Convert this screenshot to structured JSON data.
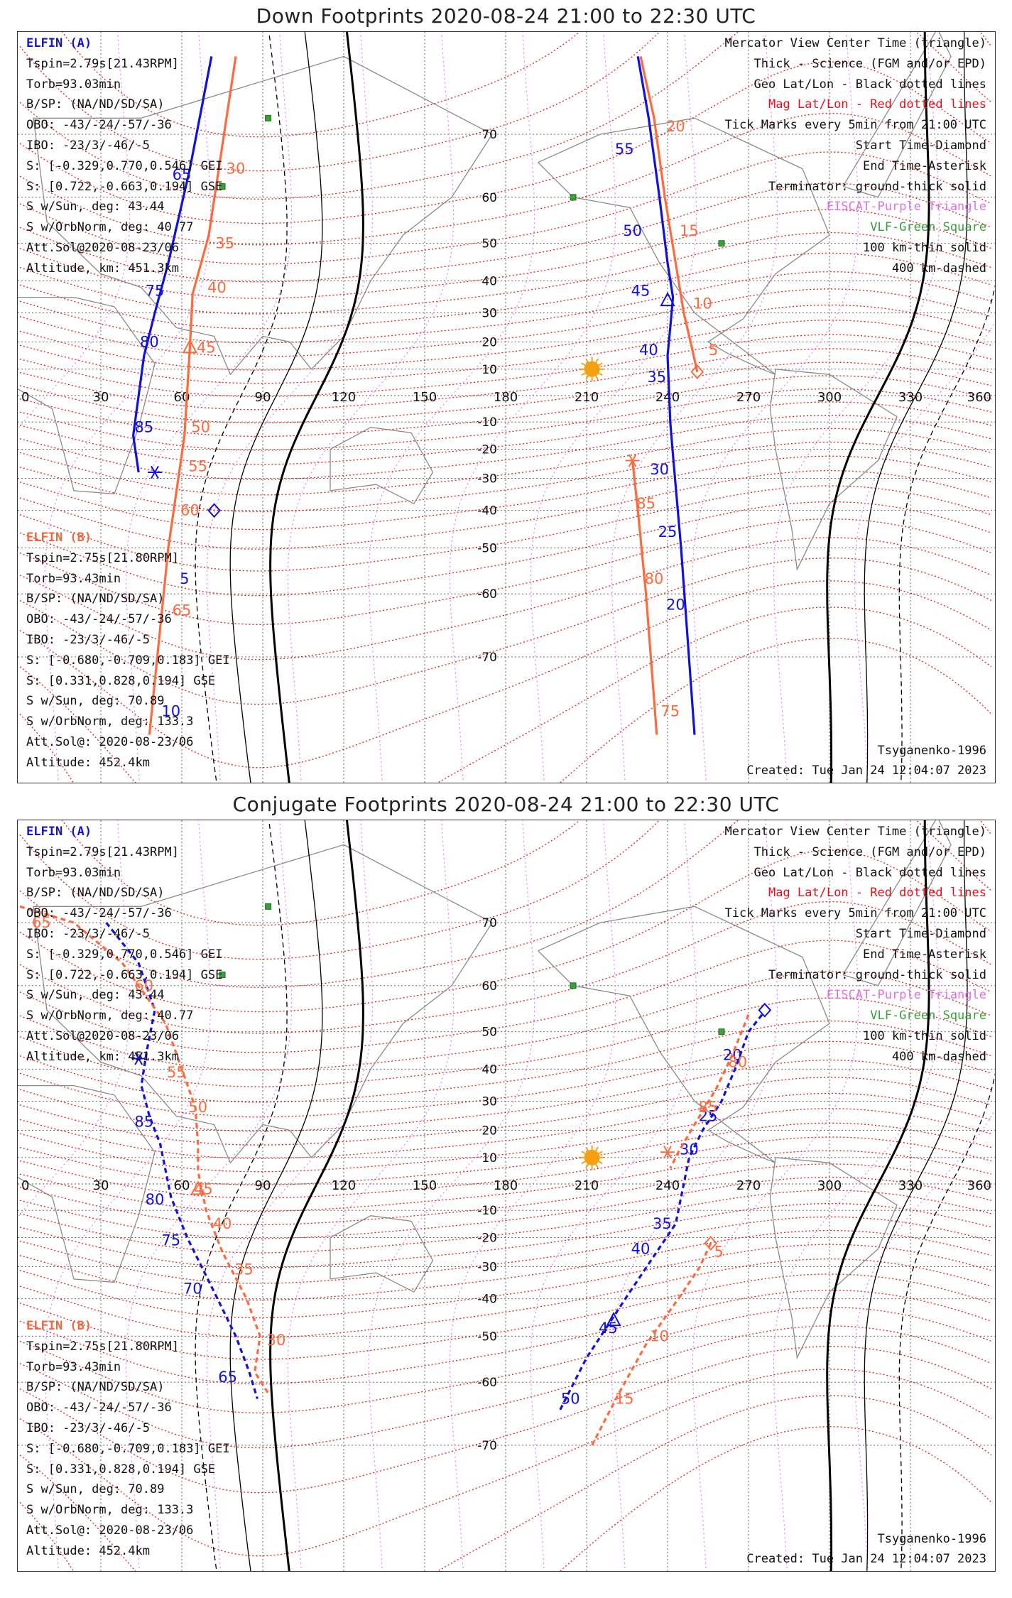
{
  "colors": {
    "elfin_a": "#1010e0",
    "elfin_b": "#ff6a3d",
    "mag_grid": "#e81a1a",
    "geo_grid": "#555555",
    "eiscat": "#e080ee",
    "vlf": "#3aa03a",
    "terminator": "#000000",
    "sun": "#f4a010"
  },
  "panels": [
    {
      "title": "Down Footprints 2020-08-24 21:00 to 22:30 UTC",
      "left_info_a": [
        "ELFIN (A)",
        "Tspin=2.79s[21.43RPM]",
        "Torb=93.03min",
        "B/SP: (NA/ND/SD/SA)",
        "OBO: -43/-24/-57/-36",
        "IBO: -23/3/-46/-5",
        "S: [-0.329,0.770,0.546] GEI",
        "S: [0.722,-0.663,0.194] GSE",
        "S w/Sun, deg: 43.44",
        "S w/OrbNorm, deg: 40.77",
        "Att.Sol@2020-08-23/06",
        "Altitude, km: 451.3km"
      ],
      "left_info_b": [
        "ELFIN (B)",
        "Tspin=2.75s[21.80RPM]",
        "Torb=93.43min",
        "B/SP: (NA/ND/SD/SA)",
        "OBO: -43/-24/-57/-36",
        "IBO: -23/3/-46/-5",
        "S: [-0.680,-0.709,0.183] GEI",
        "S: [0.331,0.828,0.194] GSE",
        "S w/Sun, deg: 70.89",
        "S w/OrbNorm, deg: 133.3",
        "Att.Sol@: 2020-08-23/06",
        "Altitude: 452.4km"
      ],
      "right_legend": [
        "Mercator View Center Time (triangle)",
        "Thick - Science (FGM and/or EPD)",
        "Geo Lat/Lon - Black dotted lines",
        "Mag Lat/Lon - Red dotted lines",
        "Tick Marks every 5min from 21:00 UTC",
        "Start Time-Diamond",
        "End Time-Asterisk",
        "Terminator: ground-thick solid",
        "EISCAT-Purple Triangle",
        "VLF-Green Square",
        "100 km-thin solid",
        "400 km-dashed"
      ],
      "model": "Tsyganenko-1996",
      "created": "Created: Tue Jan 24 12:04:07 2023"
    },
    {
      "title": "Conjugate Footprints 2020-08-24 21:00 to 22:30 UTC",
      "left_info_a": [
        "ELFIN (A)",
        "Tspin=2.79s[21.43RPM]",
        "Torb=93.03min",
        "B/SP: (NA/ND/SD/SA)",
        "OBO: -43/-24/-57/-36",
        "IBO: -23/3/-46/-5",
        "S: [-0.329,0.770,0.546] GEI",
        "S: [0.722,-0.663,0.194] GSE",
        "S w/Sun, deg: 43.44",
        "S w/OrbNorm, deg: 40.77",
        "Att.Sol@2020-08-23/06",
        "Altitude, km: 451.3km"
      ],
      "left_info_b": [
        "ELFIN (B)",
        "Tspin=2.75s[21.80RPM]",
        "Torb=93.43min",
        "B/SP: (NA/ND/SD/SA)",
        "OBO: -43/-24/-57/-36",
        "IBO: -23/3/-46/-5",
        "S: [-0.680,-0.709,0.183] GEI",
        "S: [0.331,0.828,0.194] GSE",
        "S w/Sun, deg: 70.89",
        "S w/OrbNorm, deg: 133.3",
        "Att.Sol@: 2020-08-23/06",
        "Altitude: 452.4km"
      ],
      "right_legend": [
        "Mercator View Center Time (triangle)",
        "Thick - Science (FGM and/or EPD)",
        "Geo Lat/Lon - Black dotted lines",
        "Mag Lat/Lon - Red dotted lines",
        "Tick Marks every 5min from 21:00 UTC",
        "Start Time-Diamond",
        "End Time-Asterisk",
        "Terminator: ground-thick solid",
        "EISCAT-Purple Triangle",
        "VLF-Green Square",
        "100 km-thin solid",
        "400 km-dashed"
      ],
      "model": "Tsyganenko-1996",
      "created": "Created: Tue Jan 24 12:04:07 2023"
    }
  ],
  "chart_data": [
    {
      "type": "scatter",
      "title": "Down Footprints 2020-08-24 21:00 to 22:30 UTC",
      "projection": "mercator",
      "xlim": [
        0,
        360
      ],
      "lon_ticks": [
        0,
        30,
        60,
        90,
        120,
        150,
        180,
        210,
        240,
        270,
        300,
        330,
        360
      ],
      "lat_ticks": [
        70,
        60,
        50,
        40,
        30,
        20,
        10,
        -10,
        -20,
        -30,
        -40,
        -50,
        -60,
        -70
      ],
      "sun": {
        "lon": 212,
        "lat": 10
      },
      "series": [
        {
          "name": "ELFIN (A)",
          "linestyle": "solid",
          "segments": [
            [
              [
                71,
                78
              ],
              [
                63,
                65
              ],
              [
                55,
                45
              ],
              [
                50,
                30
              ],
              [
                46,
                15
              ],
              [
                42,
                -15
              ],
              [
                44,
                -28
              ]
            ],
            [
              [
                229,
                78
              ],
              [
                233,
                72
              ],
              [
                237,
                60
              ],
              [
                240,
                45
              ],
              [
                242,
                35
              ],
              [
                241,
                25
              ],
              [
                240,
                15
              ],
              [
                241,
                -10
              ],
              [
                242,
                -22
              ],
              [
                245,
                -50
              ],
              [
                250,
                -78
              ]
            ]
          ],
          "ticks": [
            {
              "label": "65",
              "lon": 60,
              "lat": 64
            },
            {
              "label": "75",
              "lon": 50,
              "lat": 37
            },
            {
              "label": "80",
              "lon": 48,
              "lat": 20
            },
            {
              "label": "85",
              "lon": 46,
              "lat": -12
            },
            {
              "label": "5",
              "lon": 61,
              "lat": -57
            },
            {
              "label": "10",
              "lon": 56,
              "lat": -76
            },
            {
              "label": "55",
              "lon": 224,
              "lat": 68
            },
            {
              "label": "50",
              "lon": 227,
              "lat": 53
            },
            {
              "label": "45",
              "lon": 230,
              "lat": 37
            },
            {
              "label": "40",
              "lon": 233,
              "lat": 17
            },
            {
              "label": "35",
              "lon": 236,
              "lat": 7
            },
            {
              "label": "30",
              "lon": 237,
              "lat": -27
            },
            {
              "label": "25",
              "lon": 240,
              "lat": -46
            },
            {
              "label": "20",
              "lon": 243,
              "lat": -62
            }
          ],
          "view_center": {
            "lon": 240,
            "lat": 34
          },
          "start": {
            "lon": 72,
            "lat": -40
          },
          "end": {
            "lon": 50,
            "lat": -28
          }
        },
        {
          "name": "ELFIN (B)",
          "linestyle": "solid",
          "segments": [
            [
              [
                80,
                78
              ],
              [
                70,
                52
              ],
              [
                64,
                36
              ],
              [
                63,
                18
              ],
              [
                61,
                -15
              ],
              [
                55,
                -50
              ],
              [
                48,
                -78
              ]
            ],
            [
              [
                230,
                78
              ],
              [
                235,
                72
              ],
              [
                239,
                60
              ],
              [
                243,
                45
              ],
              [
                246,
                30
              ],
              [
                249,
                18
              ],
              [
                251,
                9
              ]
            ],
            [
              [
                227,
                -24
              ],
              [
                229,
                -40
              ],
              [
                232,
                -60
              ],
              [
                236,
                -78
              ]
            ]
          ],
          "ticks": [
            {
              "label": "30",
              "lon": 80,
              "lat": 65
            },
            {
              "label": "35",
              "lon": 76,
              "lat": 50
            },
            {
              "label": "40",
              "lon": 73,
              "lat": 38
            },
            {
              "label": "45",
              "lon": 69,
              "lat": 18
            },
            {
              "label": "50",
              "lon": 67,
              "lat": -12
            },
            {
              "label": "55",
              "lon": 66,
              "lat": -26
            },
            {
              "label": "60",
              "lon": 63,
              "lat": -40
            },
            {
              "label": "65",
              "lon": 60,
              "lat": -63
            },
            {
              "label": "20",
              "lon": 243,
              "lat": 71
            },
            {
              "label": "15",
              "lon": 248,
              "lat": 53
            },
            {
              "label": "10",
              "lon": 253,
              "lat": 33
            },
            {
              "label": "5",
              "lon": 257,
              "lat": 17
            },
            {
              "label": "85",
              "lon": 232,
              "lat": -38
            },
            {
              "label": "80",
              "lon": 235,
              "lat": -57
            },
            {
              "label": "75",
              "lon": 241,
              "lat": -76
            }
          ],
          "view_center": {
            "lon": 63,
            "lat": 18
          },
          "start": {
            "lon": 251,
            "lat": 9
          },
          "end": {
            "lon": 227,
            "lat": -24
          }
        }
      ]
    },
    {
      "type": "scatter",
      "title": "Conjugate Footprints 2020-08-24 21:00 to 22:30 UTC",
      "projection": "mercator",
      "xlim": [
        0,
        360
      ],
      "lon_ticks": [
        0,
        30,
        60,
        90,
        120,
        150,
        180,
        210,
        240,
        270,
        300,
        330,
        360
      ],
      "lat_ticks": [
        70,
        60,
        50,
        40,
        30,
        20,
        10,
        -10,
        -20,
        -30,
        -40,
        -50,
        -60,
        -70
      ],
      "sun": {
        "lon": 212,
        "lat": 10
      },
      "series": [
        {
          "name": "ELFIN (A)",
          "linestyle": "dashed",
          "segments": [
            [
              [
                32,
                70
              ],
              [
                44,
                64
              ],
              [
                50,
                55
              ],
              [
                47,
                45
              ],
              [
                45,
                35
              ],
              [
                48,
                25
              ],
              [
                52,
                15
              ],
              [
                56,
                -5
              ],
              [
                62,
                -20
              ],
              [
                72,
                -38
              ],
              [
                80,
                -50
              ],
              [
                85,
                -58
              ],
              [
                88,
                -63
              ]
            ],
            [
              [
                275,
                54
              ],
              [
                270,
                50
              ],
              [
                265,
                40
              ],
              [
                260,
                30
              ],
              [
                253,
                20
              ],
              [
                248,
                10
              ],
              [
                243,
                -15
              ],
              [
                236,
                -25
              ],
              [
                226,
                -38
              ],
              [
                220,
                -45
              ],
              [
                210,
                -55
              ],
              [
                200,
                -65
              ]
            ]
          ],
          "ticks": [
            {
              "label": "85",
              "lon": 46,
              "lat": 23
            },
            {
              "label": "80",
              "lon": 50,
              "lat": -6
            },
            {
              "label": "75",
              "lon": 56,
              "lat": -21
            },
            {
              "label": "70",
              "lon": 64,
              "lat": -37
            },
            {
              "label": "65",
              "lon": 77,
              "lat": -59
            },
            {
              "label": "20",
              "lon": 264,
              "lat": 44
            },
            {
              "label": "25",
              "lon": 255,
              "lat": 25
            },
            {
              "label": "30",
              "lon": 248,
              "lat": 13
            },
            {
              "label": "35",
              "lon": 238,
              "lat": -15
            },
            {
              "label": "40",
              "lon": 230,
              "lat": -24
            },
            {
              "label": "45",
              "lon": 218,
              "lat": -48
            },
            {
              "label": "50",
              "lon": 204,
              "lat": -63
            }
          ],
          "view_center": {
            "lon": 220,
            "lat": -46
          },
          "start": {
            "lon": 276,
            "lat": 55
          },
          "end": {
            "lon": 44,
            "lat": 43
          }
        },
        {
          "name": "ELFIN (B)",
          "linestyle": "dashed",
          "segments": [
            [
              [
                0,
                72
              ],
              [
                20,
                70
              ],
              [
                38,
                64
              ],
              [
                54,
                52
              ],
              [
                60,
                40
              ],
              [
                65,
                28
              ],
              [
                66,
                15
              ],
              [
                66,
                5
              ],
              [
                69,
                -10
              ],
              [
                75,
                -25
              ],
              [
                84,
                -40
              ],
              [
                89,
                -50
              ],
              [
                87,
                -58
              ],
              [
                92,
                -62
              ]
            ],
            [
              [
                270,
                54
              ],
              [
                264,
                44
              ],
              [
                258,
                34
              ],
              [
                250,
                22
              ],
              [
                244,
                12
              ],
              [
                241,
                6
              ]
            ],
            [
              [
                256,
                -22
              ],
              [
                252,
                -30
              ],
              [
                244,
                -40
              ],
              [
                232,
                -52
              ],
              [
                222,
                -62
              ],
              [
                212,
                -70
              ]
            ]
          ],
          "ticks": [
            {
              "label": "65",
              "lon": 8,
              "lat": 70
            },
            {
              "label": "60",
              "lon": 46,
              "lat": 60
            },
            {
              "label": "55",
              "lon": 58,
              "lat": 39
            },
            {
              "label": "50",
              "lon": 66,
              "lat": 28
            },
            {
              "label": "45",
              "lon": 68,
              "lat": -2
            },
            {
              "label": "40",
              "lon": 75,
              "lat": -15
            },
            {
              "label": "35",
              "lon": 83,
              "lat": -31
            },
            {
              "label": "30",
              "lon": 95,
              "lat": -51
            },
            {
              "label": "80",
              "lon": 266,
              "lat": 42
            },
            {
              "label": "85",
              "lon": 255,
              "lat": 28
            },
            {
              "label": "5",
              "lon": 259,
              "lat": -25
            },
            {
              "label": "10",
              "lon": 237,
              "lat": -50
            },
            {
              "label": "15",
              "lon": 224,
              "lat": -63
            }
          ],
          "view_center": {
            "lon": 66,
            "lat": -2
          },
          "start": {
            "lon": 256,
            "lat": -22
          },
          "end": {
            "lon": 240,
            "lat": 12
          }
        }
      ]
    }
  ]
}
